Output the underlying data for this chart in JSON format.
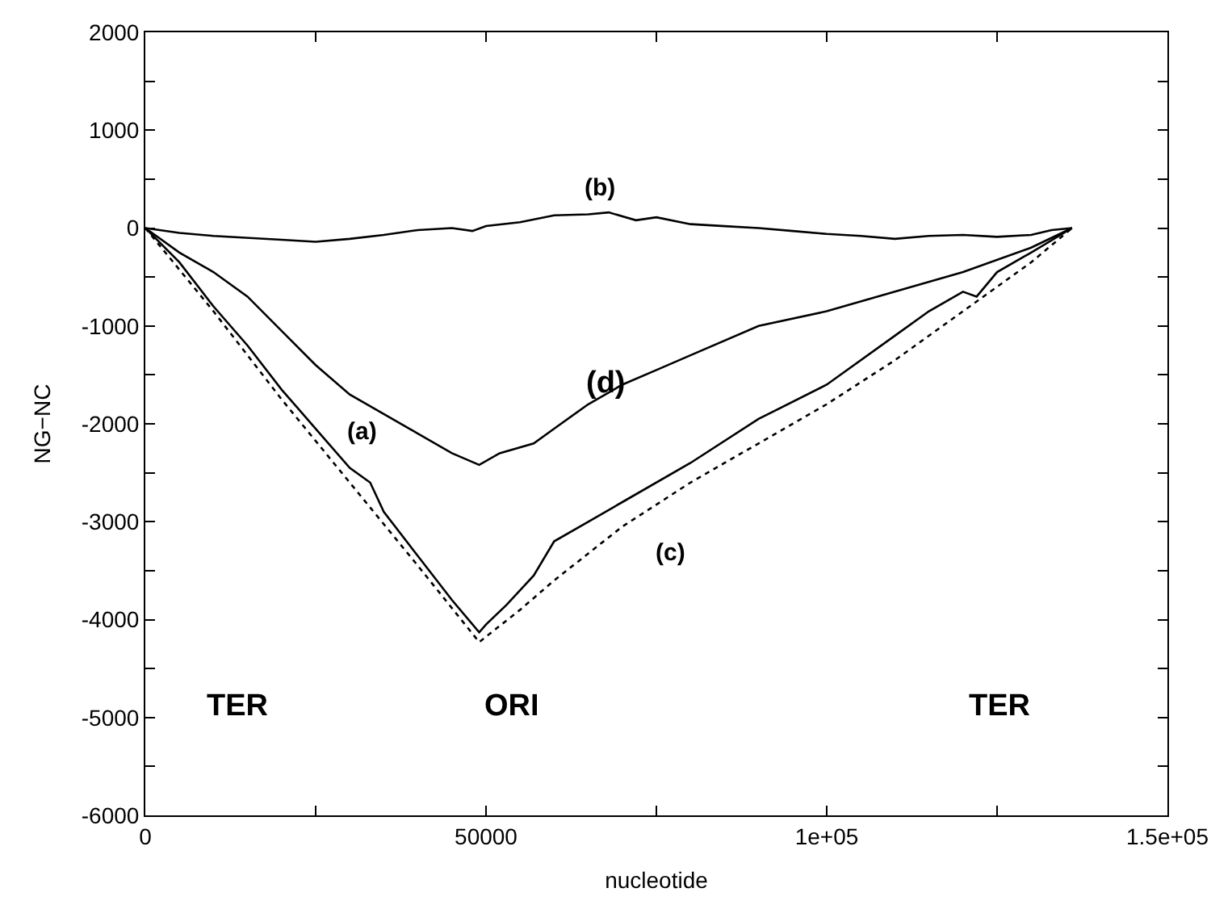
{
  "chart_data": {
    "type": "line",
    "xlabel": "nucleotide",
    "ylabel": "NG−NC",
    "xlim": [
      0,
      150000
    ],
    "ylim": [
      -6000,
      2000
    ],
    "xticks": [
      0,
      {
        "value": 25000,
        "label": null
      },
      50000,
      {
        "value": 75000,
        "label": null
      },
      {
        "value": 100000,
        "label": "1e+05"
      },
      {
        "value": 125000,
        "label": null
      },
      {
        "value": 150000,
        "label": "1.5e+05"
      }
    ],
    "yticks": [
      -6000,
      {
        "value": -5500,
        "label": null
      },
      -5000,
      {
        "value": -4500,
        "label": null
      },
      -4000,
      {
        "value": -3500,
        "label": null
      },
      -3000,
      {
        "value": -2500,
        "label": null
      },
      -2000,
      {
        "value": -1500,
        "label": null
      },
      -1000,
      {
        "value": -500,
        "label": null
      },
      0,
      {
        "value": 500,
        "label": null
      },
      1000,
      {
        "value": 1500,
        "label": null
      },
      2000
    ],
    "marker": "none",
    "series": [
      {
        "color": "#000000",
        "line_style": "solid",
        "x": [
          0,
          5000,
          10000,
          15000,
          20000,
          25000,
          30000,
          33000,
          35000,
          40000,
          45000,
          49000,
          50000,
          53000,
          57000,
          60000,
          65000,
          70000,
          80000,
          90000,
          100000,
          110000,
          115000,
          120000,
          122000,
          125000,
          130000,
          136000
        ],
        "values": [
          0,
          -350,
          -800,
          -1200,
          -1650,
          -2050,
          -2450,
          -2600,
          -2900,
          -3350,
          -3800,
          -4130,
          -4050,
          -3850,
          -3550,
          -3200,
          -3000,
          -2800,
          -2400,
          -1950,
          -1600,
          -1100,
          -850,
          -650,
          -700,
          -450,
          -250,
          0
        ]
      },
      {
        "color": "#000000",
        "line_style": "solid",
        "x": [
          0,
          5000,
          10000,
          20000,
          25000,
          30000,
          35000,
          40000,
          45000,
          48000,
          50000,
          55000,
          60000,
          65000,
          68000,
          72000,
          75000,
          80000,
          85000,
          90000,
          95000,
          100000,
          105000,
          110000,
          115000,
          120000,
          125000,
          130000,
          133000,
          136000
        ],
        "values": [
          0,
          -50,
          -80,
          -120,
          -140,
          -110,
          -70,
          -20,
          0,
          -30,
          20,
          60,
          130,
          140,
          160,
          80,
          110,
          40,
          20,
          0,
          -30,
          -60,
          -80,
          -110,
          -80,
          -70,
          -90,
          -70,
          -20,
          0
        ]
      },
      {
        "color": "#000000",
        "line_style": "dotted",
        "x": [
          0,
          10000,
          20000,
          30000,
          40000,
          49000,
          55000,
          60000,
          70000,
          80000,
          90000,
          100000,
          110000,
          120000,
          125000,
          130000,
          136000
        ],
        "values": [
          0,
          -850,
          -1750,
          -2600,
          -3450,
          -4230,
          -3900,
          -3600,
          -3050,
          -2600,
          -2200,
          -1800,
          -1350,
          -850,
          -600,
          -350,
          0
        ]
      },
      {
        "color": "#000000",
        "line_style": "solid",
        "x": [
          0,
          5000,
          10000,
          15000,
          20000,
          25000,
          30000,
          35000,
          40000,
          45000,
          49000,
          52000,
          57000,
          60000,
          65000,
          70000,
          75000,
          80000,
          90000,
          100000,
          110000,
          120000,
          130000,
          136000
        ],
        "values": [
          0,
          -250,
          -450,
          -700,
          -1050,
          -1400,
          -1700,
          -1900,
          -2100,
          -2300,
          -2420,
          -2300,
          -2200,
          -2050,
          -1800,
          -1600,
          -1450,
          -1300,
          -1000,
          -850,
          -650,
          -450,
          -200,
          0
        ]
      }
    ],
    "annotations": [
      "(a)",
      "(b)",
      "(c)",
      "(d)",
      "TER",
      "ORI",
      "TER"
    ]
  }
}
